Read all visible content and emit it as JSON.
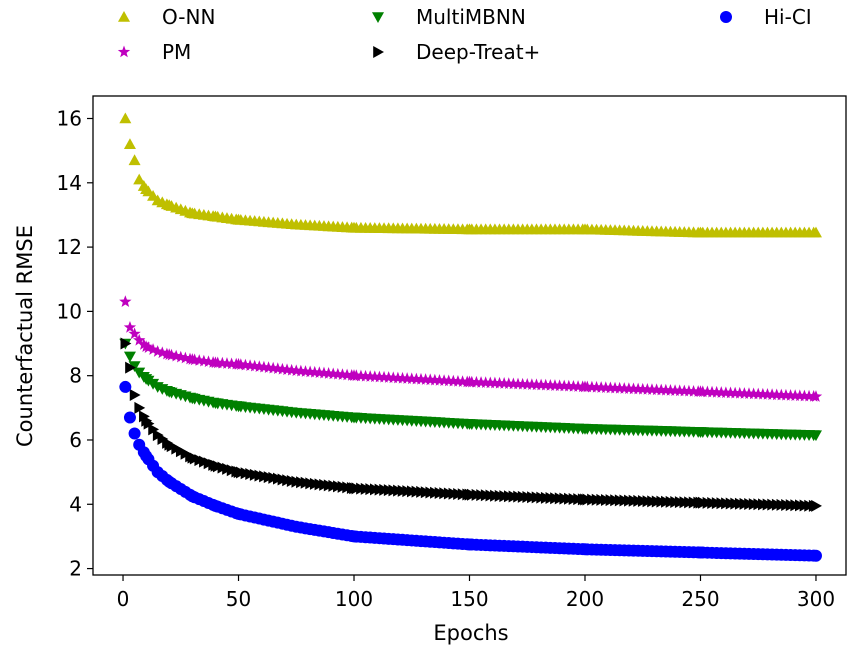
{
  "chart_data": {
    "type": "scatter",
    "title": "",
    "xlabel": "Epochs",
    "ylabel": "Counterfactual RMSE",
    "xlim": [
      -13,
      313
    ],
    "ylim": [
      1.8,
      16.7
    ],
    "xticks": [
      0,
      50,
      100,
      150,
      200,
      250,
      300
    ],
    "yticks": [
      2,
      4,
      6,
      8,
      10,
      12,
      14,
      16
    ],
    "grid": false,
    "legend_position": "top, above plot, 3 columns",
    "series": [
      {
        "name": "O-NN",
        "marker": "triangle-up",
        "color": "#bfbf00",
        "x": [
          1,
          3,
          5,
          7,
          10,
          15,
          20,
          30,
          40,
          50,
          75,
          100,
          150,
          200,
          250,
          300
        ],
        "y": [
          16.0,
          15.2,
          14.7,
          14.1,
          13.8,
          13.45,
          13.3,
          13.05,
          12.95,
          12.85,
          12.7,
          12.6,
          12.55,
          12.55,
          12.45,
          12.45
        ]
      },
      {
        "name": "PM",
        "marker": "star",
        "color": "#bf00bf",
        "x": [
          1,
          3,
          5,
          7,
          10,
          15,
          20,
          30,
          40,
          50,
          75,
          100,
          150,
          200,
          250,
          300
        ],
        "y": [
          10.3,
          9.5,
          9.3,
          9.1,
          8.9,
          8.75,
          8.65,
          8.5,
          8.4,
          8.35,
          8.15,
          8.0,
          7.8,
          7.65,
          7.5,
          7.35
        ]
      },
      {
        "name": "MultiMBNN",
        "marker": "triangle-down",
        "color": "#008000",
        "x": [
          1,
          3,
          5,
          7,
          10,
          15,
          20,
          30,
          40,
          50,
          75,
          100,
          150,
          200,
          250,
          300
        ],
        "y": [
          9.0,
          8.6,
          8.3,
          8.1,
          7.9,
          7.65,
          7.5,
          7.3,
          7.15,
          7.05,
          6.85,
          6.7,
          6.5,
          6.35,
          6.25,
          6.15
        ]
      },
      {
        "name": "Deep-Treat+",
        "marker": "triangle-right",
        "color": "#000000",
        "x": [
          1,
          3,
          5,
          7,
          10,
          15,
          20,
          30,
          40,
          50,
          75,
          100,
          150,
          200,
          250,
          300
        ],
        "y": [
          9.0,
          8.25,
          7.4,
          7.0,
          6.6,
          6.15,
          5.85,
          5.45,
          5.2,
          5.0,
          4.7,
          4.5,
          4.3,
          4.15,
          4.05,
          3.95
        ]
      },
      {
        "name": "Hi-CI",
        "marker": "circle",
        "color": "#0000ff",
        "x": [
          1,
          3,
          5,
          7,
          10,
          15,
          20,
          30,
          40,
          50,
          75,
          100,
          150,
          200,
          250,
          300
        ],
        "y": [
          7.65,
          6.7,
          6.2,
          5.85,
          5.5,
          5.0,
          4.7,
          4.25,
          3.95,
          3.7,
          3.3,
          3.0,
          2.75,
          2.6,
          2.5,
          2.4
        ]
      }
    ]
  }
}
